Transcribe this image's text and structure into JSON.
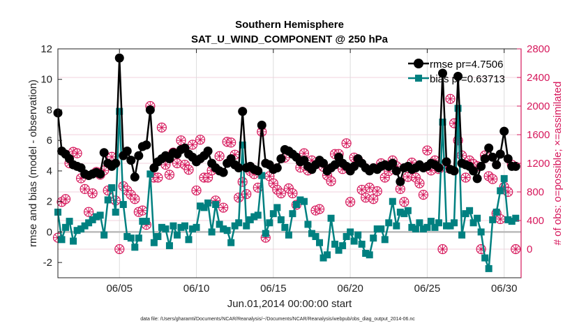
{
  "chart_data": {
    "type": "line",
    "title": "Southern Hemisphere",
    "subtitle": "SAT_U_WIND_COMPONENT @ 250 hPa",
    "xlabel": "Jun.01,2014 00:00:00 start",
    "ylabel": "rmse and bias (model - observation)",
    "y2label": "# of obs: o=possible; ×=assimilated",
    "footer": "data file: /Users/gharamti/Documents/NCAR/Reanalysis/~/Documents/NCAR/Reanalysis/webpub/obs_diag_output_2014-06.nc",
    "xlim": [
      1,
      31.1
    ],
    "ylim": [
      -3,
      12
    ],
    "y2lim": [
      -400,
      2800
    ],
    "x_ticks": [
      {
        "day": 5,
        "label": "06/05"
      },
      {
        "day": 10,
        "label": "06/10"
      },
      {
        "day": 15,
        "label": "06/15"
      },
      {
        "day": 20,
        "label": "06/20"
      },
      {
        "day": 25,
        "label": "06/25"
      },
      {
        "day": 30,
        "label": "06/30"
      }
    ],
    "y_ticks": [
      -2,
      0,
      2,
      4,
      6,
      8,
      10,
      12
    ],
    "y2_ticks": [
      0,
      400,
      800,
      1200,
      1600,
      2000,
      2400,
      2800
    ],
    "grid": true,
    "legend_position": "top-right",
    "x_start_day": 1,
    "x_step_days": 0.25,
    "series": [
      {
        "name": "rmse pr=4.7506",
        "color": "#000000",
        "marker": "circle",
        "axis": "left",
        "values": [
          7.8,
          5.3,
          5.1,
          4.8,
          4.4,
          4.3,
          4.2,
          3.8,
          3.7,
          3.8,
          3.9,
          3.8,
          5.2,
          4.5,
          4.3,
          4.5,
          11.4,
          5.0,
          5.3,
          4.7,
          3.6,
          5.0,
          5.6,
          5.7,
          8.0,
          4.2,
          4.6,
          4.8,
          5.0,
          4.8,
          5.2,
          5.1,
          5.4,
          5.5,
          5.1,
          4.9,
          4.6,
          4.8,
          5.0,
          5.3,
          4.5,
          4.2,
          4.0,
          3.9,
          4.5,
          4.8,
          4.4,
          4.2,
          7.9,
          4.2,
          4.3,
          4.1,
          4.0,
          7.0,
          4.5,
          4.4,
          4.1,
          4.2,
          4.8,
          5.4,
          5.3,
          5.1,
          4.9,
          4.6,
          4.7,
          4.3,
          4.1,
          4.4,
          4.7,
          4.5,
          4.0,
          4.2,
          4.4,
          4.9,
          4.5,
          4.3,
          4.0,
          4.3,
          4.8,
          4.5,
          4.2,
          4.0,
          4.2,
          4.1,
          4.3,
          4.4,
          4.3,
          4.5,
          4.0,
          3.3,
          4.2,
          4.3,
          4.1,
          4.2,
          4.4,
          4.2,
          4.3,
          4.5,
          4.4,
          4.2,
          10.4,
          4.6,
          4.1,
          4.0,
          10.2,
          4.5,
          4.4,
          4.3,
          4.0,
          3.5,
          4.3,
          4.8,
          5.5,
          4.9,
          4.4,
          5.1,
          6.6,
          4.8,
          4.3,
          4.3
        ]
      },
      {
        "name": "bias pr=0.63713",
        "color": "#008080",
        "marker": "square",
        "axis": "left",
        "values": [
          1.3,
          -0.5,
          0.3,
          0.7,
          -0.6,
          0.1,
          0.2,
          0.4,
          0.6,
          0.8,
          1.0,
          1.1,
          -0.2,
          2.1,
          2.9,
          1.3,
          7.9,
          1.8,
          -0.3,
          -0.4,
          -1.0,
          -0.4,
          0.7,
          0.7,
          3.8,
          -0.7,
          -0.3,
          0.3,
          0.2,
          -0.9,
          0.4,
          -0.2,
          0.3,
          0.4,
          -0.5,
          0.2,
          0.3,
          1.7,
          1.6,
          1.9,
          0.0,
          1.8,
          0.5,
          0.2,
          0.1,
          -0.7,
          0.4,
          0.6,
          5.7,
          0.4,
          0.8,
          1.0,
          1.1,
          3.7,
          -0.1,
          0.6,
          1.2,
          1.6,
          0.8,
          0.3,
          -0.2,
          1.2,
          1.8,
          2.1,
          2.0,
          0.5,
          -0.1,
          -0.3,
          -0.7,
          -1.7,
          -1.5,
          0.9,
          -0.8,
          -1.2,
          -0.9,
          -0.3,
          0.0,
          -0.6,
          -0.2,
          -0.8,
          -1.4,
          -1.5,
          -0.4,
          0.2,
          0.2,
          -0.5,
          0.6,
          2.0,
          0.4,
          1.3,
          1.2,
          1.4,
          0.3,
          0.2,
          0.6,
          0.2,
          0.3,
          0.7,
          0.3,
          0.6,
          7.2,
          0.4,
          0.4,
          0.6,
          8.1,
          -0.2,
          1.2,
          1.4,
          0.6,
          0.9,
          0.0,
          -1.7,
          -2.4,
          0.8,
          1.3,
          2.7,
          3.5,
          0.8,
          0.7,
          0.9
        ]
      },
      {
        "name": "# of obs",
        "color": "#d6175b",
        "marker": "circle-asterisk",
        "axis": "right",
        "values": [
          160,
          660,
          700,
          1200,
          1360,
          1340,
          990,
          840,
          520,
          780,
          1080,
          1040,
          1100,
          820,
          1290,
          680,
          0,
          880,
          820,
          760,
          700,
          520,
          540,
          340,
          2000,
          1000,
          1000,
          1700,
          1180,
          1040,
          1350,
          1200,
          1520,
          1180,
          1110,
          1460,
          820,
          1530,
          1000,
          1000,
          1100,
          680,
          1300,
          580,
          1500,
          1490,
          1320,
          720,
          940,
          770,
          1090,
          1050,
          860,
          1640,
          160,
          1020,
          920,
          830,
          780,
          1280,
          850,
          780,
          620,
          1140,
          1340,
          1100,
          1240,
          540,
          560,
          1150,
          1030,
          950,
          1330,
          1330,
          1120,
          1480,
          660,
          1280,
          1250,
          830,
          720,
          860,
          700,
          810,
          1200,
          1000,
          1090,
          1240,
          1160,
          840,
          660,
          1010,
          1210,
          1000,
          920,
          760,
          1380,
          1100,
          1240,
          1120,
          0,
          1140,
          2100,
          1760,
          1520,
          1310,
          1000,
          1240,
          1190,
          1160,
          0,
          1310,
          1020,
          980,
          500,
          420,
          870,
          800,
          1180,
          0
        ]
      }
    ]
  }
}
